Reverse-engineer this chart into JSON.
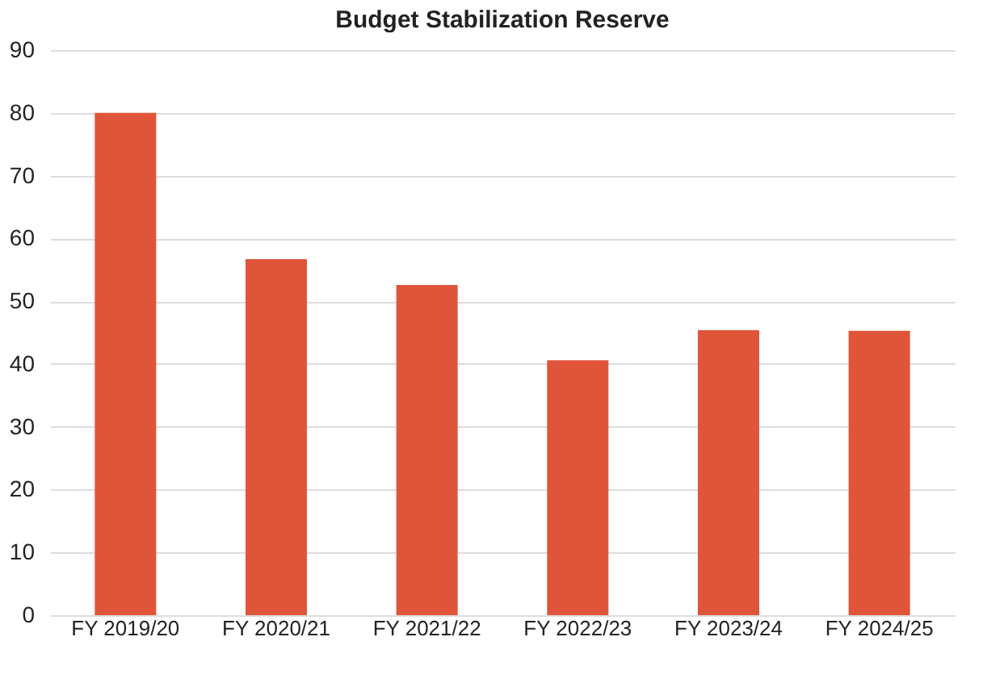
{
  "chart_data": {
    "type": "bar",
    "title": "Budget Stabilization Reserve",
    "categories": [
      "FY 2019/20",
      "FY 2020/21",
      "FY 2021/22",
      "FY 2022/23",
      "FY 2023/24",
      "FY 2024/25"
    ],
    "values": [
      80,
      56.7,
      52.6,
      40.6,
      45.4,
      45.3
    ],
    "color": "#e0553a",
    "ylim": [
      0,
      90
    ],
    "yticks": [
      0,
      10,
      20,
      30,
      40,
      50,
      60,
      70,
      80,
      90
    ],
    "grid": "y"
  }
}
